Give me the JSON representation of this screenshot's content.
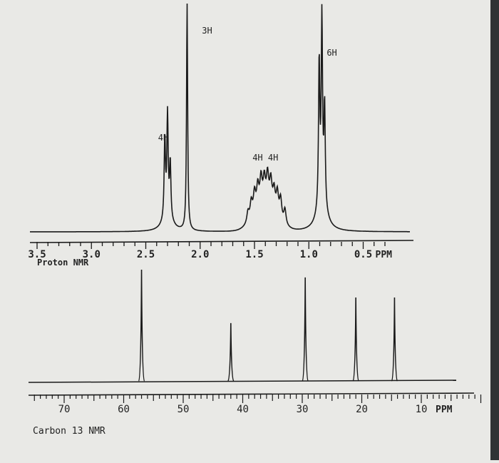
{
  "chart_data": [
    {
      "type": "line",
      "name": "proton",
      "title": "Proton NMR",
      "unit": "PPM",
      "x_range": [
        3.5,
        0.3
      ],
      "axis_reversed": true,
      "ticks": [
        {
          "value": 3.5,
          "label": "3.5"
        },
        {
          "value": 3.0,
          "label": "3.0"
        },
        {
          "value": 2.5,
          "label": "2.5"
        },
        {
          "value": 2.0,
          "label": "2.0"
        },
        {
          "value": 1.5,
          "label": "1.5"
        },
        {
          "value": 1.0,
          "label": "1.0"
        },
        {
          "value": 0.5,
          "label": "0.5"
        }
      ],
      "peaks": [
        {
          "ppm": 2.3,
          "integration": "4H",
          "multiplicity": "triplet",
          "rel_height": 0.44
        },
        {
          "ppm": 2.12,
          "integration": "3H",
          "multiplicity": "singlet",
          "rel_height": 1.0
        },
        {
          "ppm": 1.4,
          "integration": "4H 4H",
          "multiplicity": "multiplet",
          "rel_height": 0.22
        },
        {
          "ppm": 0.88,
          "integration": "6H",
          "multiplicity": "triplet",
          "rel_height": 0.8
        }
      ],
      "annotations": [
        {
          "text": "4H",
          "ppm": 2.3
        },
        {
          "text": "3H",
          "ppm": 2.12
        },
        {
          "text": "4H 4H",
          "ppm": 1.4
        },
        {
          "text": "6H",
          "ppm": 0.88
        }
      ]
    },
    {
      "type": "bar",
      "name": "carbon",
      "title": "Carbon 13 NMR",
      "unit": "PPM",
      "x_range": [
        75,
        0
      ],
      "axis_reversed": true,
      "ticks": [
        {
          "value": 70,
          "label": "70"
        },
        {
          "value": 60,
          "label": "60"
        },
        {
          "value": 50,
          "label": "50"
        },
        {
          "value": 40,
          "label": "40"
        },
        {
          "value": 30,
          "label": "30"
        },
        {
          "value": 20,
          "label": "20"
        },
        {
          "value": 10,
          "label": "10"
        }
      ],
      "peaks": [
        {
          "ppm": 57,
          "rel_height": 1.0
        },
        {
          "ppm": 42,
          "rel_height": 0.52
        },
        {
          "ppm": 29.5,
          "rel_height": 0.93
        },
        {
          "ppm": 21,
          "rel_height": 0.75
        },
        {
          "ppm": 14.5,
          "rel_height": 0.75
        }
      ]
    }
  ]
}
